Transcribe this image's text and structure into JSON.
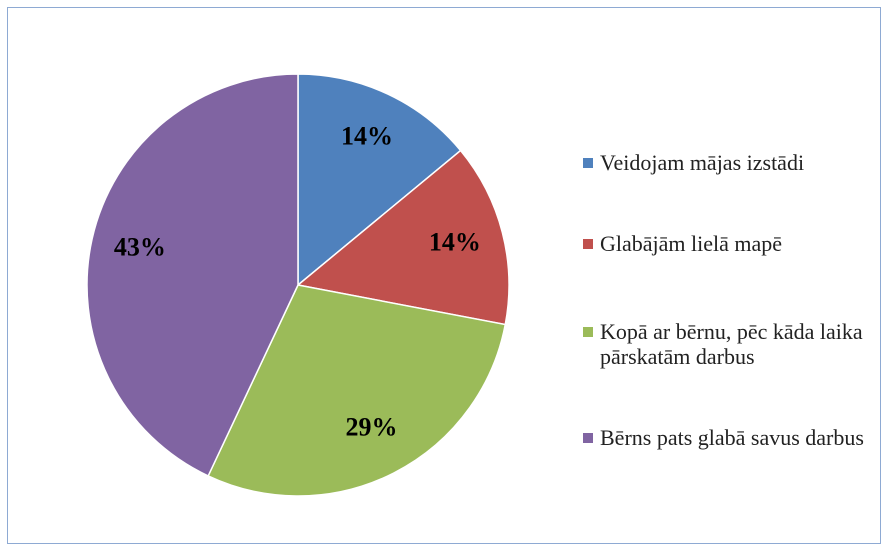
{
  "chart_data": {
    "type": "pie",
    "categories": [
      "Veidojam mājas izstādi",
      "Glabājām lielā mapē",
      "Kopā ar bērnu, pēc kāda laika pārskatām darbus",
      "Bērns pats glabā savus darbus"
    ],
    "values": [
      14,
      14,
      29,
      43
    ],
    "value_labels": [
      "14%",
      "14%",
      "29%",
      "43%"
    ],
    "colors": [
      "#4f81bd",
      "#c0504d",
      "#9bbb59",
      "#8064a2"
    ],
    "legend": "right"
  }
}
